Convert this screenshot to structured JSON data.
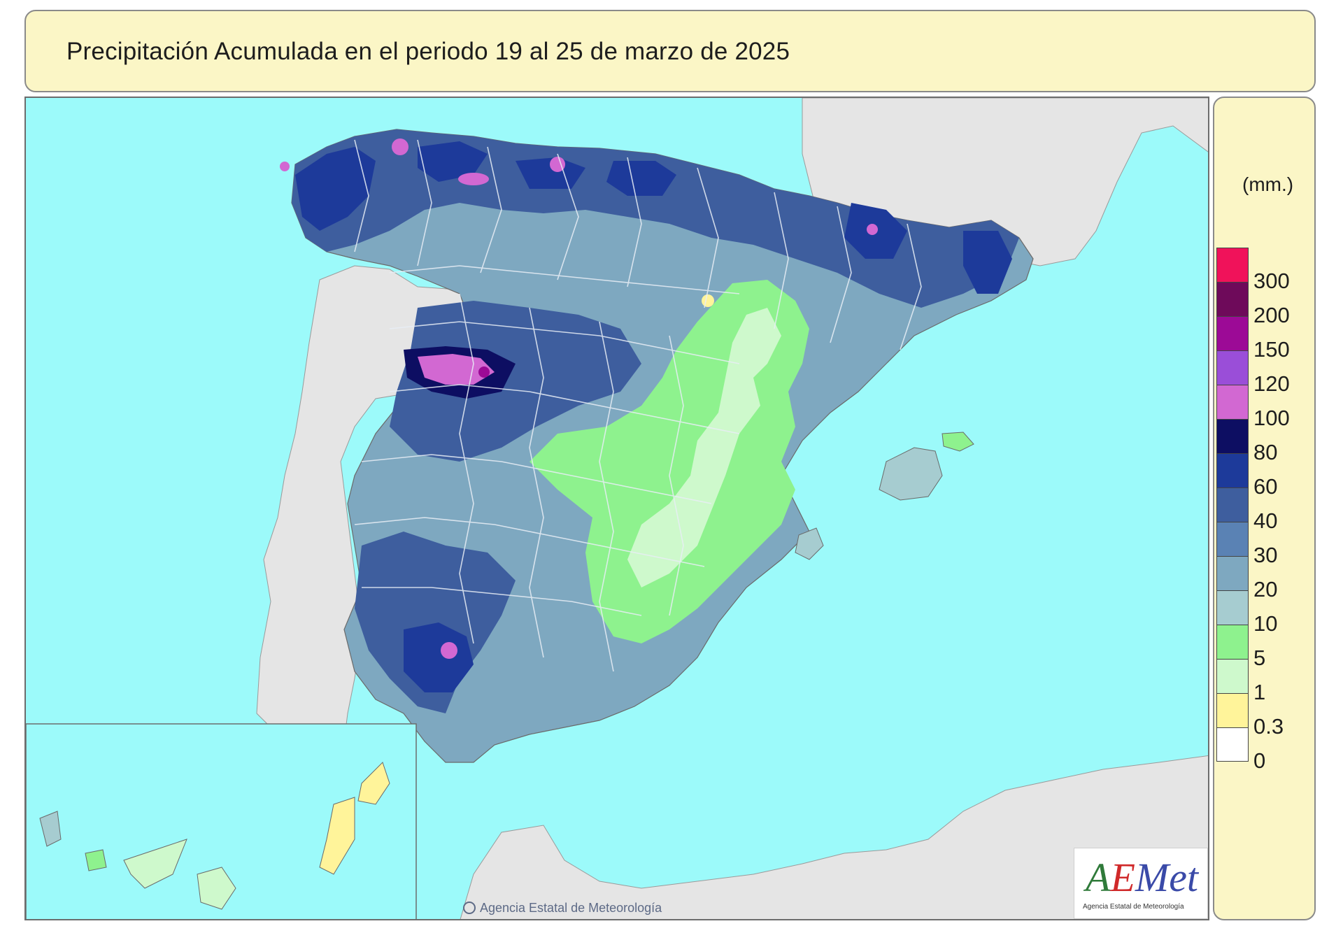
{
  "title": "Precipitación Acumulada en el periodo 19 al 25 de marzo de 2025",
  "legend": {
    "unit": "(mm.)",
    "classes": [
      {
        "label": "300",
        "color": "#f0125a"
      },
      {
        "label": "200",
        "color": "#6e0a5a"
      },
      {
        "label": "150",
        "color": "#9c0a96"
      },
      {
        "label": "120",
        "color": "#9a4ed8"
      },
      {
        "label": "100",
        "color": "#d268d2"
      },
      {
        "label": "80",
        "color": "#0d0e62"
      },
      {
        "label": "60",
        "color": "#1d3a9a"
      },
      {
        "label": "40",
        "color": "#3e5e9e"
      },
      {
        "label": "30",
        "color": "#5a82b4"
      },
      {
        "label": "20",
        "color": "#7ea8c0"
      },
      {
        "label": "10",
        "color": "#a6ccd0"
      },
      {
        "label": "5",
        "color": "#8ef28e"
      },
      {
        "label": "1",
        "color": "#cef9cc"
      },
      {
        "label": "0.3",
        "color": "#fff49a"
      },
      {
        "label": "0",
        "color": "#ffffff"
      }
    ]
  },
  "colors": {
    "sea": "#9cfafa",
    "land_other": "#e5e5e5",
    "title_background": "#fbf6c6"
  },
  "logo": {
    "text_a": "A",
    "text_e": "E",
    "text_rest": "Met",
    "subtitle": "Agencia Estatal de Meteorología"
  },
  "credit": "Agencia Estatal de Meteorología"
}
